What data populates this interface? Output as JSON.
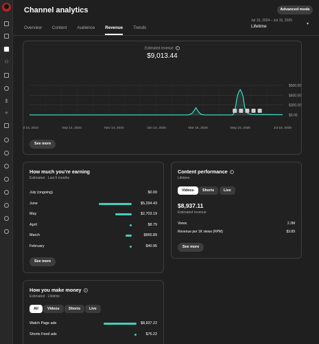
{
  "header": {
    "title": "Channel analytics",
    "advanced_mode": "Advanced mode",
    "tabs": [
      "Overview",
      "Content",
      "Audience",
      "Revenue",
      "Trends"
    ],
    "active_tab": "Revenue",
    "date_range": "Jul 15, 2024 – Jul 15, 2025",
    "date_selection": "Lifetime"
  },
  "sidebar": {
    "items": [
      "dashboard-icon",
      "content-icon",
      "analytics-icon",
      "community-icon",
      "subtitles-icon",
      "copyright-icon",
      "earn-icon",
      "customization-icon",
      "audio-library-icon",
      "channel-icon-1",
      "channel-icon-2",
      "channel-icon-3",
      "channel-icon-4",
      "channel-icon-5",
      "channel-icon-6",
      "channel-icon-7",
      "channel-icon-8"
    ],
    "active": "analytics-icon"
  },
  "revenue_chart": {
    "label": "Estimated revenue",
    "total": "$9,013.44",
    "see_more": "See more"
  },
  "chart_data": {
    "type": "area",
    "x_ticks": [
      "Jul 15, 2024",
      "Sep 14, 2024",
      "Nov 14, 2024",
      "Jan 14, 2025",
      "Mar 15, 2025",
      "May 15, 2025",
      "Jul 15, 2025"
    ],
    "y_ticks": [
      "$0.00",
      "$300.00",
      "$600.00",
      "$900.00"
    ],
    "ylim": [
      0,
      900
    ],
    "grid": true,
    "series": [
      {
        "color": "#3fd1bd",
        "points": [
          [
            "2024-07-15",
            0
          ],
          [
            "2025-03-01",
            0
          ],
          [
            "2025-03-06",
            40
          ],
          [
            "2025-03-09",
            120
          ],
          [
            "2025-03-12",
            220
          ],
          [
            "2025-03-15",
            110
          ],
          [
            "2025-03-19",
            20
          ],
          [
            "2025-03-24",
            0
          ],
          [
            "2025-05-04",
            0
          ],
          [
            "2025-05-07",
            100
          ],
          [
            "2025-05-09",
            370
          ],
          [
            "2025-05-11",
            600
          ],
          [
            "2025-05-13",
            710
          ],
          [
            "2025-05-15",
            770
          ],
          [
            "2025-05-17",
            680
          ],
          [
            "2025-05-19",
            560
          ],
          [
            "2025-05-21",
            260
          ],
          [
            "2025-05-23",
            120
          ],
          [
            "2025-05-26",
            40
          ],
          [
            "2025-06-01",
            12
          ],
          [
            "2025-07-15",
            8
          ]
        ]
      }
    ]
  },
  "earning": {
    "title": "How much you’re earning",
    "subtitle": "Estimated · Last 6 months",
    "rows": [
      {
        "label": "July (ongoing)",
        "value": "$0.00",
        "frac": 0
      },
      {
        "label": "June",
        "value": "$5,294.43",
        "frac": 1.0
      },
      {
        "label": "May",
        "value": "$2,703.19",
        "frac": 0.51
      },
      {
        "label": "April",
        "value": "$8.79",
        "frac": 0.02
      },
      {
        "label": "March",
        "value": "$965.89",
        "frac": 0.18
      },
      {
        "label": "February",
        "value": "$40.95",
        "frac": 0.02
      }
    ],
    "see_more": "See more"
  },
  "performance": {
    "title": "Content performance",
    "subtitle": "Lifetime",
    "chips": [
      "Videos",
      "Shorts",
      "Live"
    ],
    "selected_chip": "Videos",
    "big_value": "$8,937.11",
    "big_label": "Estimated revenue",
    "metrics": [
      {
        "label": "Views",
        "value": "2.3M"
      },
      {
        "label": "Revenue per 1K views (RPM)",
        "value": "$3.89"
      }
    ],
    "see_more": "See more"
  },
  "make_money": {
    "title": "How you make money",
    "subtitle": "Estimated · Lifetime",
    "chips": [
      "All",
      "Videos",
      "Shorts",
      "Live"
    ],
    "selected_chip": "All",
    "rows": [
      {
        "label": "Watch Page ads",
        "value": "$8,937.22",
        "frac": 1.0
      },
      {
        "label": "Shorts Feed ads",
        "value": "$76.22",
        "frac": 0.02
      }
    ]
  }
}
